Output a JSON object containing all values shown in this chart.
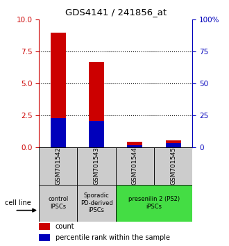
{
  "title": "GDS4141 / 241856_at",
  "samples": [
    "GSM701542",
    "GSM701543",
    "GSM701544",
    "GSM701545"
  ],
  "count_values": [
    9.0,
    6.7,
    0.45,
    0.55
  ],
  "percentile_values": [
    23,
    21,
    2.0,
    3.5
  ],
  "ylim_left": [
    0,
    10
  ],
  "ylim_right": [
    0,
    100
  ],
  "yticks_left": [
    0,
    2.5,
    5,
    7.5,
    10
  ],
  "yticks_right": [
    0,
    25,
    50,
    75,
    100
  ],
  "count_color": "#cc0000",
  "percentile_color": "#0000bb",
  "bar_width": 0.4,
  "groups": [
    {
      "label": "control\nIPSCs",
      "indices": [
        0
      ],
      "color": "#cccccc"
    },
    {
      "label": "Sporadic\nPD-derived\niPSCs",
      "indices": [
        1
      ],
      "color": "#cccccc"
    },
    {
      "label": "presenilin 2 (PS2)\niPSCs",
      "indices": [
        2,
        3
      ],
      "color": "#44dd44"
    }
  ],
  "legend_count": "count",
  "legend_percentile": "percentile rank within the sample",
  "cell_line_label": "cell line",
  "tick_color_left": "#cc0000",
  "tick_color_right": "#0000bb"
}
